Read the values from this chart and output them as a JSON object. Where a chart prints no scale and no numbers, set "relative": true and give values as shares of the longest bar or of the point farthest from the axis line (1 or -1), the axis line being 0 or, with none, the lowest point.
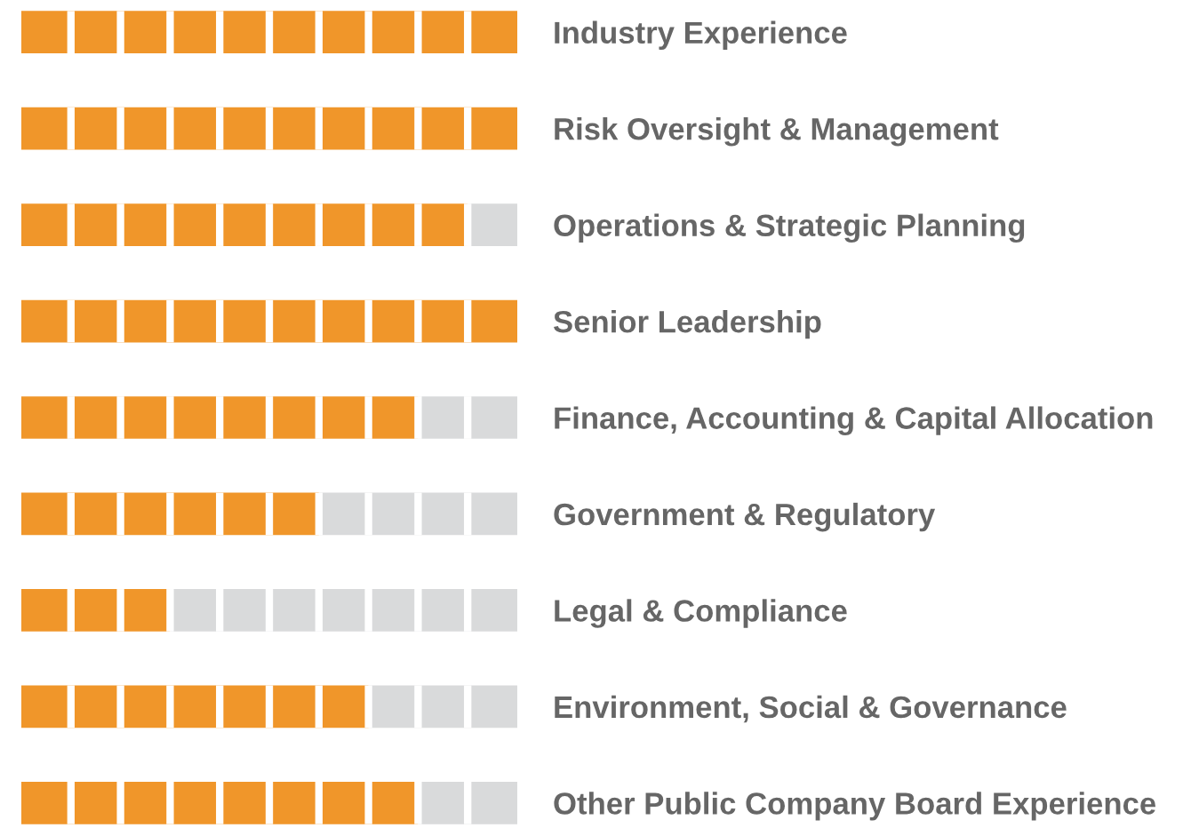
{
  "chart_data": {
    "type": "bar",
    "orientation": "horizontal",
    "stacked": true,
    "relative": true,
    "categories": [
      "Industry Experience",
      "Risk Oversight & Management",
      "Operations & Strategic Planning",
      "Senior Leadership",
      "Finance, Accounting & Capital Allocation",
      "Government & Regulatory",
      "Legal & Compliance",
      "Environment, Social & Governance",
      "Other Public Company Board Experience"
    ],
    "series": [
      {
        "color": "#f0962a",
        "values": [
          1,
          1,
          0.9,
          1,
          0.8,
          0.6,
          0.3,
          0.7,
          0.8
        ]
      },
      {
        "color": "#d9dadb",
        "values": [
          0,
          0,
          0.1,
          0,
          0.2,
          0.4,
          0.7,
          0.3,
          0.2
        ]
      }
    ]
  }
}
